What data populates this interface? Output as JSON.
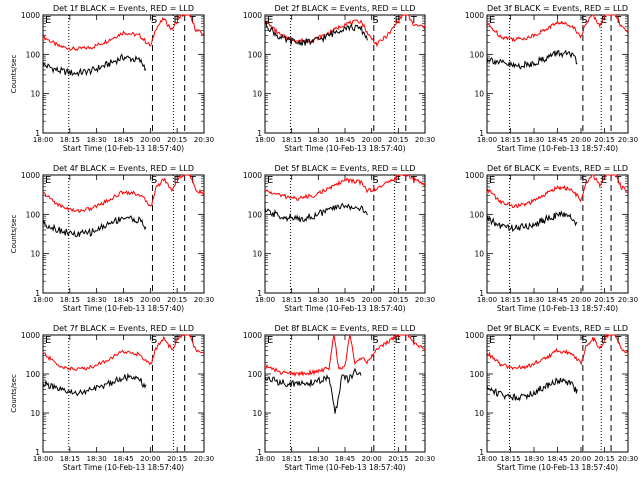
{
  "chart_data": [
    {
      "type": "line",
      "title": "Det 1f BLACK = Events, RED = LLD",
      "xlabel": "Start Time (10-Feb-13 18:57:40)",
      "ylabel": "Counts/sec",
      "yscale": "log",
      "ylim": [
        1,
        1000
      ],
      "x_ticks": [
        "18:00",
        "18:15",
        "18:30",
        "18:45",
        "20:00",
        "20:15",
        "20:30"
      ],
      "y_ticks": [
        "1",
        "10",
        "100",
        "1000"
      ],
      "markers": [
        "S",
        "E",
        "T"
      ],
      "series": [
        {
          "name": "LLD",
          "color": "#ff0000",
          "x": [
            0,
            10,
            20,
            30,
            40,
            50,
            60,
            67,
            70,
            75,
            80,
            85,
            90,
            95,
            100
          ],
          "y": [
            280,
            160,
            135,
            150,
            220,
            360,
            300,
            160,
            450,
            800,
            420,
            900,
            1200,
            420,
            320
          ]
        },
        {
          "name": "Events",
          "color": "#000000",
          "x": [
            0,
            10,
            20,
            30,
            40,
            50,
            60,
            64
          ],
          "y": [
            55,
            38,
            33,
            38,
            55,
            85,
            70,
            45
          ]
        }
      ]
    },
    {
      "type": "line",
      "title": "Det 2f BLACK = Events, RED = LLD",
      "xlabel": "Start Time (10-Feb-13 18:57:40)",
      "ylabel": "",
      "yscale": "log",
      "ylim": [
        1,
        1000
      ],
      "x_ticks": [
        "18:00",
        "18:15",
        "18:30",
        "18:45",
        "20:00",
        "20:15",
        "20:30"
      ],
      "y_ticks": [
        "1",
        "10",
        "100",
        "1000"
      ],
      "markers": [
        "S",
        "E",
        "T"
      ],
      "series": [
        {
          "name": "LLD",
          "color": "#ff0000",
          "x": [
            0,
            10,
            20,
            30,
            40,
            50,
            60,
            65,
            70,
            78,
            83,
            88,
            93,
            100
          ],
          "y": [
            700,
            300,
            220,
            230,
            350,
            600,
            700,
            300,
            180,
            350,
            700,
            1200,
            550,
            500
          ]
        },
        {
          "name": "Events",
          "color": "#000000",
          "x": [
            0,
            10,
            20,
            30,
            40,
            50,
            60,
            64
          ],
          "y": [
            600,
            250,
            200,
            210,
            300,
            500,
            450,
            250
          ]
        }
      ]
    },
    {
      "type": "line",
      "title": "Det 3f BLACK = Events, RED = LLD",
      "xlabel": "Start Time (10-Feb-13 18:57:40)",
      "ylabel": "",
      "yscale": "log",
      "ylim": [
        1,
        1000
      ],
      "x_ticks": [
        "18:00",
        "18:15",
        "18:30",
        "18:45",
        "20:00",
        "20:15",
        "20:30"
      ],
      "y_ticks": [
        "1",
        "10",
        "100",
        "1000"
      ],
      "markers": [
        "S",
        "E",
        "T"
      ],
      "series": [
        {
          "name": "LLD",
          "color": "#ff0000",
          "x": [
            0,
            10,
            20,
            30,
            40,
            50,
            60,
            67,
            70,
            75,
            80,
            85,
            90,
            95,
            100
          ],
          "y": [
            600,
            280,
            240,
            270,
            400,
            650,
            550,
            280,
            600,
            1000,
            550,
            1100,
            1400,
            500,
            380
          ]
        },
        {
          "name": "Events",
          "color": "#000000",
          "x": [
            0,
            10,
            20,
            30,
            40,
            50,
            60,
            64
          ],
          "y": [
            80,
            60,
            50,
            55,
            75,
            110,
            95,
            60
          ]
        }
      ]
    },
    {
      "type": "line",
      "title": "Det 4f BLACK = Events, RED = LLD",
      "xlabel": "Start Time (10-Feb-13 18:57:40)",
      "ylabel": "Counts/sec",
      "yscale": "log",
      "ylim": [
        1,
        1000
      ],
      "x_ticks": [
        "18:00",
        "18:15",
        "18:30",
        "18:45",
        "20:00",
        "20:15",
        "20:30"
      ],
      "y_ticks": [
        "1",
        "10",
        "100",
        "1000"
      ],
      "markers": [
        "S",
        "E",
        "T"
      ],
      "series": [
        {
          "name": "LLD",
          "color": "#ff0000",
          "x": [
            0,
            10,
            20,
            30,
            40,
            50,
            60,
            67,
            70,
            75,
            80,
            85,
            90,
            95,
            100
          ],
          "y": [
            350,
            170,
            120,
            140,
            220,
            380,
            320,
            160,
            450,
            800,
            420,
            900,
            1200,
            420,
            320
          ]
        },
        {
          "name": "Events",
          "color": "#000000",
          "x": [
            0,
            10,
            20,
            30,
            40,
            50,
            60,
            64
          ],
          "y": [
            60,
            40,
            30,
            35,
            55,
            85,
            70,
            45
          ]
        }
      ]
    },
    {
      "type": "line",
      "title": "Det 5f BLACK = Events, RED = LLD",
      "xlabel": "Start Time (10-Feb-13 18:57:40)",
      "ylabel": "",
      "yscale": "log",
      "ylim": [
        1,
        1000
      ],
      "x_ticks": [
        "18:00",
        "18:15",
        "18:30",
        "18:45",
        "20:00",
        "20:15",
        "20:30"
      ],
      "y_ticks": [
        "1",
        "10",
        "100",
        "1000"
      ],
      "markers": [
        "S",
        "E",
        "T"
      ],
      "series": [
        {
          "name": "LLD",
          "color": "#ff0000",
          "x": [
            0,
            10,
            20,
            30,
            40,
            50,
            60,
            64,
            70,
            78,
            83,
            88,
            93,
            100
          ],
          "y": [
            400,
            300,
            250,
            300,
            450,
            750,
            650,
            400,
            450,
            700,
            900,
            1100,
            750,
            600
          ]
        },
        {
          "name": "Events",
          "color": "#000000",
          "x": [
            0,
            10,
            20,
            30,
            40,
            50,
            60,
            64
          ],
          "y": [
            120,
            90,
            75,
            90,
            130,
            170,
            140,
            95
          ]
        }
      ]
    },
    {
      "type": "line",
      "title": "Det 6f BLACK = Events, RED = LLD",
      "xlabel": "Start Time (10-Feb-13 18:57:40)",
      "ylabel": "",
      "yscale": "log",
      "ylim": [
        1,
        1000
      ],
      "x_ticks": [
        "18:00",
        "18:15",
        "18:30",
        "18:45",
        "20:00",
        "20:15",
        "20:30"
      ],
      "y_ticks": [
        "1",
        "10",
        "100",
        "1000"
      ],
      "markers": [
        "S",
        "E",
        "T"
      ],
      "series": [
        {
          "name": "LLD",
          "color": "#ff0000",
          "x": [
            0,
            10,
            20,
            30,
            40,
            50,
            60,
            67,
            70,
            75,
            80,
            85,
            90,
            95,
            100
          ],
          "y": [
            450,
            200,
            160,
            190,
            300,
            500,
            420,
            220,
            600,
            1000,
            550,
            1100,
            1400,
            500,
            380
          ]
        },
        {
          "name": "Events",
          "color": "#000000",
          "x": [
            0,
            10,
            20,
            30,
            40,
            50,
            60,
            64
          ],
          "y": [
            75,
            50,
            45,
            50,
            70,
            100,
            85,
            55
          ]
        }
      ]
    },
    {
      "type": "line",
      "title": "Det 7f BLACK = Events, RED = LLD",
      "xlabel": "Start Time (10-Feb-13 18:57:40)",
      "ylabel": "Counts/sec",
      "yscale": "log",
      "ylim": [
        1,
        1000
      ],
      "x_ticks": [
        "18:00",
        "18:15",
        "18:30",
        "18:45",
        "20:00",
        "20:15",
        "20:30"
      ],
      "y_ticks": [
        "1",
        "10",
        "100",
        "1000"
      ],
      "markers": [
        "S",
        "E",
        "T"
      ],
      "series": [
        {
          "name": "LLD",
          "color": "#ff0000",
          "x": [
            0,
            10,
            20,
            30,
            40,
            50,
            60,
            67,
            70,
            75,
            80,
            85,
            90,
            95,
            100
          ],
          "y": [
            350,
            160,
            130,
            150,
            230,
            380,
            320,
            170,
            450,
            800,
            420,
            900,
            1200,
            420,
            320
          ]
        },
        {
          "name": "Events",
          "color": "#000000",
          "x": [
            0,
            10,
            20,
            30,
            40,
            50,
            60,
            64
          ],
          "y": [
            60,
            38,
            32,
            38,
            55,
            85,
            70,
            45
          ]
        }
      ]
    },
    {
      "type": "line",
      "title": "Det 8f BLACK = Events, RED = LLD",
      "xlabel": "Start Time (10-Feb-13 18:57:40)",
      "ylabel": "",
      "yscale": "log",
      "ylim": [
        1,
        1000
      ],
      "x_ticks": [
        "18:00",
        "18:15",
        "18:30",
        "18:45",
        "20:00",
        "20:15",
        "20:30"
      ],
      "y_ticks": [
        "1",
        "10",
        "100",
        "1000"
      ],
      "markers": [
        "S",
        "E",
        "T"
      ],
      "series": [
        {
          "name": "LLD",
          "color": "#ff0000",
          "x": [
            0,
            10,
            20,
            30,
            40,
            43,
            46,
            50,
            53,
            56,
            60,
            64,
            70,
            78,
            83,
            88,
            93,
            100
          ],
          "y": [
            160,
            110,
            100,
            110,
            140,
            1200,
            140,
            160,
            1200,
            200,
            260,
            200,
            450,
            700,
            1000,
            1200,
            600,
            450
          ]
        },
        {
          "name": "Events",
          "color": "#000000",
          "x": [
            0,
            10,
            20,
            30,
            40,
            44,
            48,
            52,
            56,
            60
          ],
          "y": [
            80,
            60,
            55,
            60,
            80,
            10,
            85,
            70,
            110,
            100
          ]
        }
      ]
    },
    {
      "type": "line",
      "title": "Det 9f BLACK = Events, RED = LLD",
      "xlabel": "Start Time (10-Feb-13 18:57:40)",
      "ylabel": "",
      "yscale": "log",
      "ylim": [
        1,
        1000
      ],
      "x_ticks": [
        "18:00",
        "18:15",
        "18:30",
        "18:45",
        "20:00",
        "20:15",
        "20:30"
      ],
      "y_ticks": [
        "1",
        "10",
        "100",
        "1000"
      ],
      "markers": [
        "S",
        "E",
        "T"
      ],
      "series": [
        {
          "name": "LLD",
          "color": "#ff0000",
          "x": [
            0,
            10,
            20,
            30,
            40,
            50,
            60,
            67,
            70,
            75,
            80,
            85,
            90,
            95,
            100
          ],
          "y": [
            350,
            170,
            140,
            160,
            240,
            400,
            340,
            180,
            480,
            850,
            450,
            950,
            1250,
            450,
            330
          ]
        },
        {
          "name": "Events",
          "color": "#000000",
          "x": [
            0,
            10,
            20,
            30,
            40,
            50,
            60,
            64
          ],
          "y": [
            45,
            30,
            25,
            30,
            45,
            70,
            55,
            35
          ]
        }
      ]
    }
  ]
}
